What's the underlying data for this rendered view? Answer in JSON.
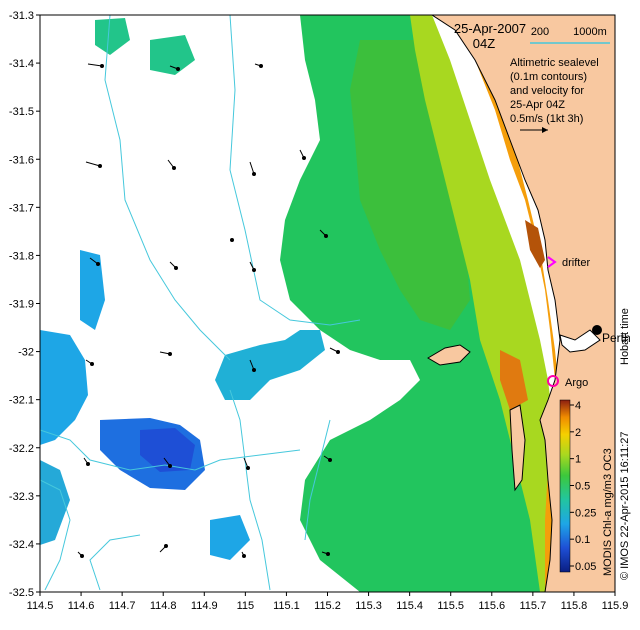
{
  "header": {
    "date_line": "25-Apr-2007",
    "hour_line": "04Z",
    "scale_left": "200",
    "scale_right": "1000m"
  },
  "legend_text": {
    "lines": [
      "Altimetric sealevel",
      "(0.1m contours)",
      "and velocity for",
      "25-Apr 04Z",
      "0.5m/s (1kt 3h)"
    ]
  },
  "markers": {
    "drifter": "drifter",
    "perth": "Perth",
    "argo": "Argo",
    "hobart_time": "Hobart time"
  },
  "colorbar": {
    "ticks": [
      "4",
      "2",
      "1",
      "0.5",
      "0.25",
      "0.1",
      "0.05"
    ],
    "caption": "MODIS Chl-a mg/m3 OC3",
    "credit": "© IMOS 22-Apr-2015 16:11:27"
  },
  "axes": {
    "x_ticks": [
      "114.5",
      "114.6",
      "114.7",
      "114.8",
      "114.9",
      "115",
      "115.1",
      "115.2",
      "115.3",
      "115.4",
      "115.5",
      "115.6",
      "115.7",
      "115.8",
      "115.9"
    ],
    "y_ticks": [
      "-31.3",
      "-31.4",
      "-31.5",
      "-31.6",
      "-31.7",
      "-31.8",
      "-31.9",
      "-32",
      "-32.1",
      "-32.2",
      "-32.3",
      "-32.4",
      "-32.5"
    ],
    "xlim": [
      114.5,
      115.9
    ],
    "ylim": [
      -32.5,
      -31.3
    ]
  },
  "colors": {
    "land": "#f8c8a0",
    "low_chl": "#1ea6e6",
    "mid_chl": "#22c55e",
    "high_chl": "#f59e0b",
    "very_high_chl": "#b45309",
    "contour": "#46c8dc",
    "drifter_marker": "#ff00ff",
    "argo_marker": "#ff00aa"
  }
}
